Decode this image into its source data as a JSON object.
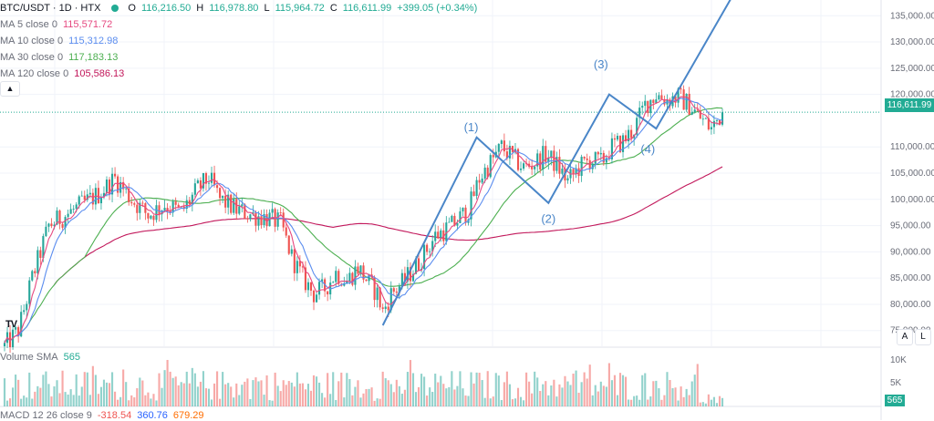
{
  "header": {
    "symbol": "BTC/USDT · 1D · HTX",
    "ohlc": {
      "o_label": "O",
      "o": "116,216.50",
      "h_label": "H",
      "h": "116,978.80",
      "l_label": "L",
      "l": "115,964.72",
      "c_label": "C",
      "c": "116,611.99",
      "change": "+399.05 (+0.34%)"
    }
  },
  "indicators": [
    {
      "label": "MA 5 close 0",
      "value": "115,571.72",
      "color": "#e64980"
    },
    {
      "label": "MA 10 close 0",
      "value": "115,312.98",
      "color": "#5b8def"
    },
    {
      "label": "MA 30 close 0",
      "value": "117,183.13",
      "color": "#4caf50"
    },
    {
      "label": "MA 120 close 0",
      "value": "105,586.13",
      "color": "#c2185b"
    }
  ],
  "volume_pane": {
    "label": "Volume SMA",
    "value": "565",
    "ticks": [
      "10K",
      "5K"
    ],
    "current": "565"
  },
  "macd_pane": {
    "label": "MACD 12 26 close 9",
    "v1": "-318.54",
    "v2": "360.76",
    "v3": "679.29"
  },
  "price_tag": "116,611.99",
  "axis_buttons": {
    "auto": "A",
    "log": "L"
  },
  "logo": "TV",
  "colors": {
    "up": "#26a69a",
    "down": "#ef5350",
    "wave": "#4a86c8",
    "last_price": "#22ab94"
  },
  "chart_data": {
    "type": "candlestick",
    "yaxis": {
      "min": 72000,
      "max": 138000,
      "ticks": [
        {
          "value": 135000,
          "label": "135,000.00"
        },
        {
          "value": 130000,
          "label": "130,000.00"
        },
        {
          "value": 125000,
          "label": "125,000.00"
        },
        {
          "value": 120000,
          "label": "120,000.00"
        },
        {
          "value": 110000,
          "label": "110,000.00"
        },
        {
          "value": 105000,
          "label": "105,000.00"
        },
        {
          "value": 100000,
          "label": "100,000.00"
        },
        {
          "value": 95000,
          "label": "95,000.00"
        },
        {
          "value": 90000,
          "label": "90,000.00"
        },
        {
          "value": 85000,
          "label": "85,000.00"
        },
        {
          "value": 80000,
          "label": "80,000.00"
        },
        {
          "value": 75000,
          "label": "75,000.00"
        }
      ]
    },
    "last_price": 116611.99,
    "close_path": [
      [
        0,
        72000
      ],
      [
        5,
        75000
      ],
      [
        10,
        85000
      ],
      [
        16,
        95000
      ],
      [
        22,
        97000
      ],
      [
        28,
        99000
      ],
      [
        34,
        101000
      ],
      [
        40,
        104000
      ],
      [
        46,
        100000
      ],
      [
        52,
        97000
      ],
      [
        58,
        99000
      ],
      [
        64,
        97500
      ],
      [
        70,
        102000
      ],
      [
        74,
        104000
      ],
      [
        78,
        100000
      ],
      [
        84,
        98000
      ],
      [
        90,
        97000
      ],
      [
        95,
        96500
      ],
      [
        100,
        95500
      ],
      [
        104,
        89000
      ],
      [
        108,
        85000
      ],
      [
        112,
        82000
      ],
      [
        116,
        83000
      ],
      [
        120,
        86000
      ],
      [
        124,
        84500
      ],
      [
        128,
        87000
      ],
      [
        132,
        84000
      ],
      [
        135,
        82000
      ],
      [
        137,
        78500
      ],
      [
        140,
        82000
      ],
      [
        144,
        84000
      ],
      [
        150,
        88000
      ],
      [
        156,
        93000
      ],
      [
        162,
        95000
      ],
      [
        168,
        98000
      ],
      [
        172,
        104000
      ],
      [
        176,
        107000
      ],
      [
        180,
        110000
      ],
      [
        184,
        108000
      ],
      [
        188,
        106000
      ],
      [
        192,
        107000
      ],
      [
        196,
        108500
      ],
      [
        200,
        106500
      ],
      [
        204,
        103500
      ],
      [
        208,
        106000
      ],
      [
        212,
        107500
      ],
      [
        216,
        107000
      ],
      [
        220,
        110000
      ],
      [
        224,
        111000
      ],
      [
        228,
        113500
      ],
      [
        232,
        118000
      ],
      [
        236,
        120000
      ],
      [
        240,
        119000
      ],
      [
        244,
        119500
      ],
      [
        248,
        118000
      ],
      [
        252,
        115500
      ],
      [
        256,
        113500
      ],
      [
        260,
        116600
      ]
    ],
    "n_candles": 261,
    "moving_averages": [
      {
        "name": "MA 5",
        "period": 5,
        "color": "#e64980"
      },
      {
        "name": "MA 10",
        "period": 10,
        "color": "#5b8def"
      },
      {
        "name": "MA 30",
        "period": 30,
        "color": "#4caf50"
      },
      {
        "name": "MA 120",
        "period": 120,
        "color": "#c2185b"
      }
    ],
    "wave_path": [
      {
        "i": 137,
        "p": 76000
      },
      {
        "i": 171,
        "p": 111800
      },
      {
        "i": 197,
        "p": 99300
      },
      {
        "i": 219,
        "p": 120000
      },
      {
        "i": 236,
        "p": 113500
      },
      {
        "i": 265,
        "p": 140000
      }
    ],
    "wave_labels": [
      {
        "text": "(1)",
        "i": 169,
        "p": 113000
      },
      {
        "text": "(2)",
        "i": 197,
        "p": 95500
      },
      {
        "text": "(3)",
        "i": 216,
        "p": 125000
      },
      {
        "text": "(4)",
        "i": 233,
        "p": 108800
      }
    ]
  }
}
